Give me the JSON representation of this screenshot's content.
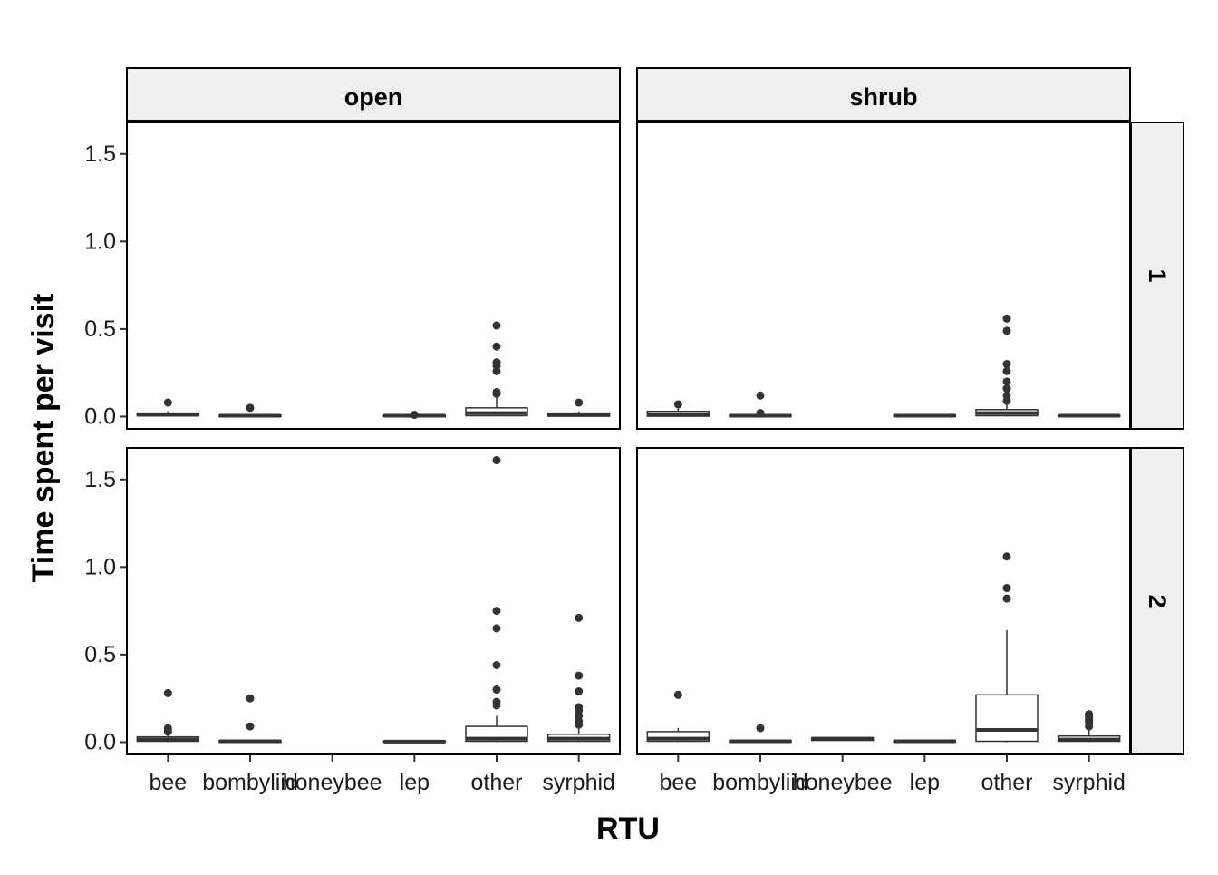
{
  "chart_data": {
    "type": "box",
    "xlabel": "RTU",
    "ylabel": "Time spent per visit",
    "categories": [
      "bee",
      "bombyliid",
      "honeybee",
      "lep",
      "other",
      "syrphid"
    ],
    "yticks": [
      0.0,
      0.5,
      1.0,
      1.5
    ],
    "ytick_labels": [
      "0.0",
      "0.5",
      "1.0",
      "1.5"
    ],
    "ylim": [
      -0.07,
      1.68
    ],
    "facet_cols": [
      "open",
      "shrub"
    ],
    "facet_rows": [
      "1",
      "2"
    ],
    "colors": {
      "strip_bg": "#efefef",
      "box_line": "#333333",
      "outlier": "#333333",
      "text": "#000000"
    },
    "panels": [
      {
        "col": "open",
        "row": "1",
        "boxes": [
          {
            "category": "bee",
            "q1": 0.005,
            "median": 0.01,
            "q3": 0.02,
            "whisker_low": 0.0,
            "whisker_high": 0.03,
            "outliers": [
              0.08
            ]
          },
          {
            "category": "bombyliid",
            "q1": 0.0,
            "median": 0.005,
            "q3": 0.008,
            "whisker_low": 0.0,
            "whisker_high": 0.01,
            "outliers": [
              0.05
            ]
          },
          {
            "category": "lep",
            "q1": 0.0,
            "median": 0.005,
            "q3": 0.008,
            "whisker_low": 0.0,
            "whisker_high": 0.01,
            "outliers": [
              0.01
            ]
          },
          {
            "category": "other",
            "q1": 0.005,
            "median": 0.02,
            "q3": 0.05,
            "whisker_low": 0.0,
            "whisker_high": 0.12,
            "outliers": [
              0.13,
              0.14,
              0.26,
              0.29,
              0.31,
              0.4,
              0.52
            ]
          },
          {
            "category": "syrphid",
            "q1": 0.002,
            "median": 0.01,
            "q3": 0.02,
            "whisker_low": 0.0,
            "whisker_high": 0.03,
            "outliers": [
              0.08
            ]
          }
        ]
      },
      {
        "col": "shrub",
        "row": "1",
        "boxes": [
          {
            "category": "bee",
            "q1": 0.002,
            "median": 0.01,
            "q3": 0.03,
            "whisker_low": 0.0,
            "whisker_high": 0.05,
            "outliers": [
              0.07
            ]
          },
          {
            "category": "bombyliid",
            "q1": 0.0,
            "median": 0.005,
            "q3": 0.01,
            "whisker_low": 0.0,
            "whisker_high": 0.015,
            "outliers": [
              0.02,
              0.12
            ]
          },
          {
            "category": "lep",
            "q1": 0.0,
            "median": 0.005,
            "q3": 0.008,
            "whisker_low": 0.0,
            "whisker_high": 0.01,
            "outliers": []
          },
          {
            "category": "other",
            "q1": 0.005,
            "median": 0.02,
            "q3": 0.04,
            "whisker_low": 0.0,
            "whisker_high": 0.08,
            "outliers": [
              0.09,
              0.12,
              0.16,
              0.2,
              0.26,
              0.3,
              0.49,
              0.56
            ]
          },
          {
            "category": "syrphid",
            "q1": 0.0,
            "median": 0.005,
            "q3": 0.008,
            "whisker_low": 0.0,
            "whisker_high": 0.01,
            "outliers": []
          }
        ]
      },
      {
        "col": "open",
        "row": "2",
        "boxes": [
          {
            "category": "bee",
            "q1": 0.005,
            "median": 0.015,
            "q3": 0.03,
            "whisker_low": 0.0,
            "whisker_high": 0.05,
            "outliers": [
              0.06,
              0.07,
              0.08,
              0.28
            ]
          },
          {
            "category": "bombyliid",
            "q1": 0.0,
            "median": 0.005,
            "q3": 0.01,
            "whisker_low": 0.0,
            "whisker_high": 0.015,
            "outliers": [
              0.09,
              0.25
            ]
          },
          {
            "category": "lep",
            "q1": 0.0,
            "median": 0.003,
            "q3": 0.006,
            "whisker_low": 0.0,
            "whisker_high": 0.008,
            "outliers": []
          },
          {
            "category": "other",
            "q1": 0.005,
            "median": 0.02,
            "q3": 0.09,
            "whisker_low": 0.0,
            "whisker_high": 0.15,
            "outliers": [
              0.21,
              0.23,
              0.3,
              0.44,
              0.65,
              0.75,
              1.61
            ]
          },
          {
            "category": "syrphid",
            "q1": 0.005,
            "median": 0.02,
            "q3": 0.045,
            "whisker_low": 0.0,
            "whisker_high": 0.09,
            "outliers": [
              0.1,
              0.12,
              0.15,
              0.18,
              0.2,
              0.29,
              0.38,
              0.71
            ]
          }
        ]
      },
      {
        "col": "shrub",
        "row": "2",
        "boxes": [
          {
            "category": "bee",
            "q1": 0.005,
            "median": 0.02,
            "q3": 0.06,
            "whisker_low": 0.0,
            "whisker_high": 0.08,
            "outliers": [
              0.27
            ]
          },
          {
            "category": "bombyliid",
            "q1": 0.0,
            "median": 0.005,
            "q3": 0.01,
            "whisker_low": 0.0,
            "whisker_high": 0.015,
            "outliers": [
              0.08
            ]
          },
          {
            "category": "honeybee",
            "q1": 0.01,
            "median": 0.02,
            "q3": 0.025,
            "whisker_low": 0.01,
            "whisker_high": 0.025,
            "outliers": []
          },
          {
            "category": "lep",
            "q1": 0.0,
            "median": 0.005,
            "q3": 0.01,
            "whisker_low": 0.0,
            "whisker_high": 0.012,
            "outliers": []
          },
          {
            "category": "other",
            "q1": 0.005,
            "median": 0.07,
            "q3": 0.27,
            "whisker_low": 0.0,
            "whisker_high": 0.64,
            "outliers": [
              0.82,
              0.88,
              1.06
            ]
          },
          {
            "category": "syrphid",
            "q1": 0.005,
            "median": 0.015,
            "q3": 0.035,
            "whisker_low": 0.0,
            "whisker_high": 0.07,
            "outliers": [
              0.09,
              0.11,
              0.12,
              0.13,
              0.14,
              0.15,
              0.16
            ]
          }
        ]
      }
    ]
  }
}
